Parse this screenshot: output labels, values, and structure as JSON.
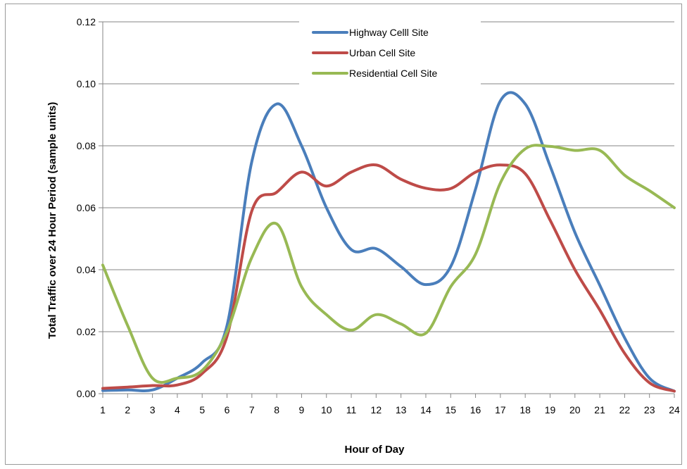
{
  "chart_data": {
    "type": "line",
    "title": "",
    "xlabel": "Hour of Day",
    "ylabel": "Total Traffic over 24 Hour Period (sample units)",
    "categories": [
      "1",
      "2",
      "3",
      "4",
      "5",
      "6",
      "7",
      "8",
      "9",
      "10",
      "11",
      "12",
      "13",
      "14",
      "15",
      "16",
      "17",
      "18",
      "19",
      "20",
      "21",
      "22",
      "23",
      "24"
    ],
    "x": [
      1,
      2,
      3,
      4,
      5,
      6,
      7,
      8,
      9,
      10,
      11,
      12,
      13,
      14,
      15,
      16,
      17,
      18,
      19,
      20,
      21,
      22,
      23,
      24
    ],
    "yticks": [
      "0.00",
      "0.02",
      "0.04",
      "0.06",
      "0.08",
      "0.10",
      "0.12"
    ],
    "ylim": [
      0,
      0.12
    ],
    "grid": "horizontal",
    "legend_position": "top-center",
    "series": [
      {
        "name": "Highway Celll Site",
        "color": "#4a7ebb",
        "values": [
          0.001,
          0.0012,
          0.0012,
          0.005,
          0.01,
          0.022,
          0.075,
          0.0935,
          0.08,
          0.06,
          0.0465,
          0.0468,
          0.041,
          0.0352,
          0.041,
          0.066,
          0.0945,
          0.0935,
          0.0735,
          0.052,
          0.035,
          0.018,
          0.005,
          0.0008
        ]
      },
      {
        "name": "Urban Cell Site",
        "color": "#be4b48",
        "values": [
          0.0017,
          0.0021,
          0.0026,
          0.0028,
          0.0065,
          0.0185,
          0.059,
          0.065,
          0.0715,
          0.067,
          0.0715,
          0.0738,
          0.0692,
          0.0663,
          0.0662,
          0.0715,
          0.0738,
          0.071,
          0.056,
          0.04,
          0.027,
          0.013,
          0.0035,
          0.0008
        ]
      },
      {
        "name": "Residential Cell Site",
        "color": "#98b954",
        "values": [
          0.0415,
          0.022,
          0.005,
          0.005,
          0.0075,
          0.02,
          0.044,
          0.0548,
          0.0345,
          0.0255,
          0.0205,
          0.0255,
          0.0225,
          0.0195,
          0.0345,
          0.045,
          0.068,
          0.079,
          0.0798,
          0.0785,
          0.0785,
          0.0705,
          0.0655,
          0.06
        ]
      }
    ]
  }
}
